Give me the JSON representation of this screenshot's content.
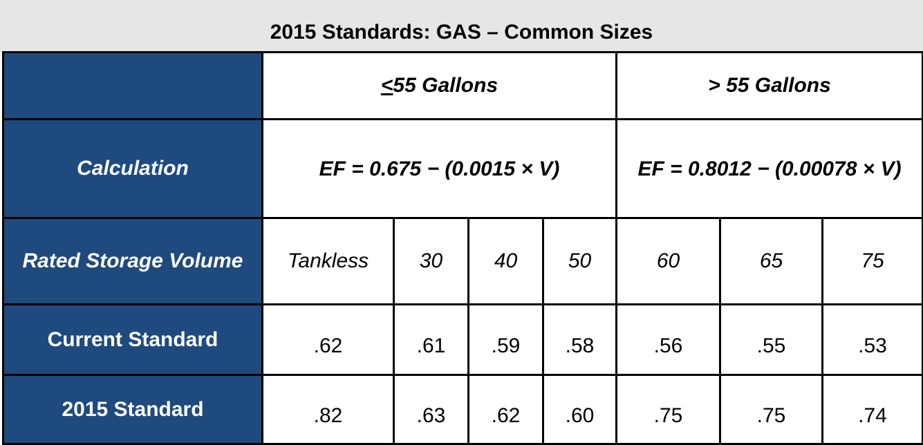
{
  "header": {
    "title": "2015 Standards: GAS – Common Sizes"
  },
  "table": {
    "groups": [
      "<55 Gallons",
      "> 55 Gallons"
    ],
    "calc_label": "Calculation",
    "formulas": [
      "EF = 0.675 − (0.0015 × V)",
      "EF = 0.8012 − (0.00078 × V)"
    ],
    "volume_label": "Rated Storage Volume",
    "volumes": [
      "Tankless",
      "30",
      "40",
      "50",
      "60",
      "65",
      "75"
    ],
    "rows": [
      {
        "label": "Current Standard",
        "values": [
          ".62",
          ".61",
          ".59",
          ".58",
          ".56",
          ".55",
          ".53"
        ]
      },
      {
        "label": "2015 Standard",
        "values": [
          ".82",
          ".63",
          ".62",
          ".60",
          ".75",
          ".75",
          ".74"
        ]
      }
    ]
  }
}
